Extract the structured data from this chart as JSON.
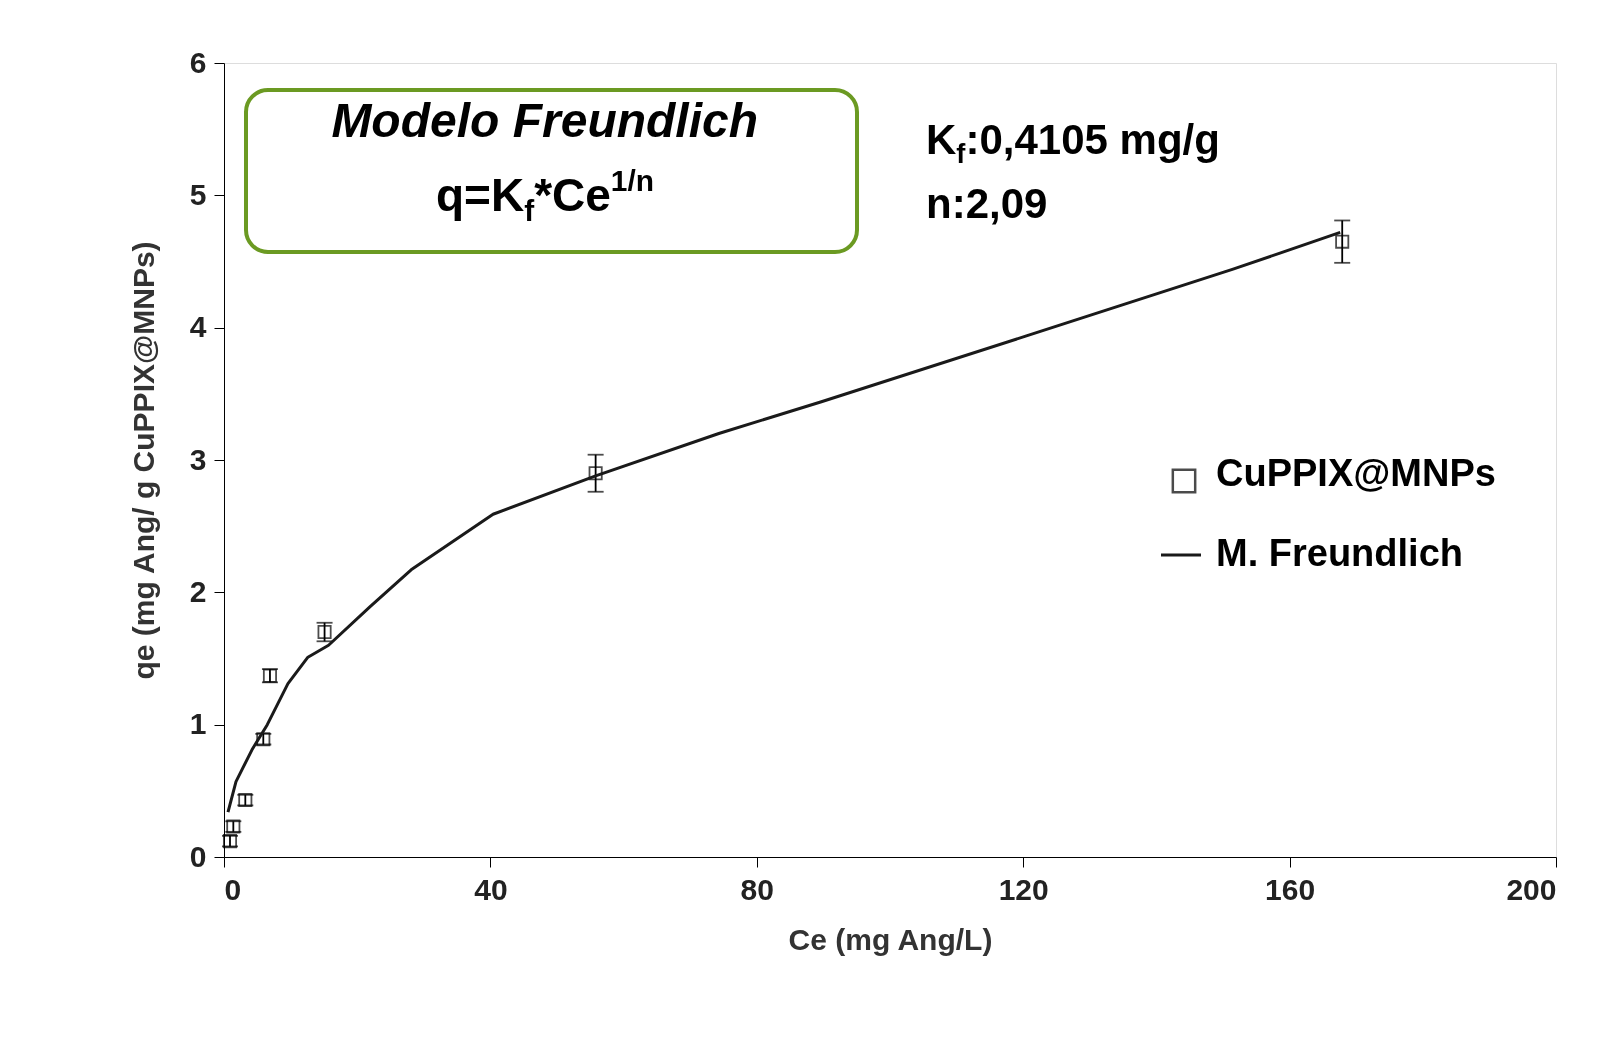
{
  "chart_data": {
    "type": "scatter",
    "xlabel": "Ce (mg Ang/L)",
    "ylabel": "qe (mg Ang/ g CuPPIX@MNPs)",
    "xlim": [
      0,
      200
    ],
    "xticks": [
      0,
      40,
      80,
      120,
      160,
      200
    ],
    "ylim": [
      0,
      6
    ],
    "yticks": [
      0,
      1,
      2,
      3,
      4,
      5,
      6
    ],
    "grid": false,
    "legend": "right",
    "series": [
      {
        "name": "CuPPIX@MNPs",
        "marker": "square",
        "color": "#000000",
        "x": [
          0.9,
          1.4,
          3.2,
          5.9,
          6.9,
          15.1,
          55.8,
          167.9
        ],
        "values": [
          0.12,
          0.23,
          0.43,
          0.89,
          1.37,
          1.7,
          2.9,
          4.65
        ],
        "errors": [
          0.04,
          0.04,
          0.04,
          0.04,
          0.05,
          0.07,
          0.14,
          0.16
        ]
      },
      {
        "name": "M. Freundlich",
        "type": "line",
        "marker": "none",
        "color": "#1a1a1a",
        "line_style": "solid",
        "x": [
          0.6,
          1.8,
          4.2,
          6.5,
          9.6,
          12.6,
          15.7,
          21.9,
          28.1,
          40.4,
          55.8,
          74.3,
          89.7,
          120.6,
          151.4,
          167.6
        ],
        "values": [
          0.34,
          0.57,
          0.81,
          1.0,
          1.31,
          1.51,
          1.6,
          1.89,
          2.17,
          2.59,
          2.88,
          3.2,
          3.44,
          3.94,
          4.44,
          4.72
        ]
      }
    ],
    "annotations": [
      "Modelo Freundlich",
      "q=K$_{f}$*Ce$^{1/n}$",
      "K$_{f}$:0,4105 mg/g",
      "n:2,09"
    ]
  }
}
